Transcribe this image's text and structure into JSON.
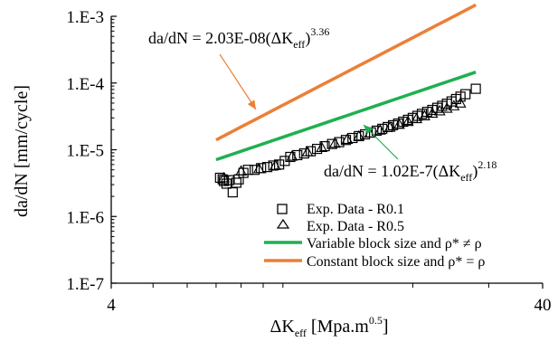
{
  "chart_data": {
    "type": "scatter",
    "xlabel": {
      "main": "ΔK",
      "sub": "eff",
      "unit_open": " [Mpa.m",
      "unit_sup": "0.5",
      "unit_close": "]"
    },
    "ylabel": "da/dN [mm/cycle]",
    "x_scale": "log",
    "y_scale": "log",
    "xlim": [
      4,
      40
    ],
    "ylim": [
      1e-07,
      0.001
    ],
    "x_ticks": [
      {
        "value": 4,
        "label": "4"
      },
      {
        "value": 40,
        "label": "40"
      }
    ],
    "y_ticks": [
      {
        "value": 0.001,
        "label": "1.E-3"
      },
      {
        "value": 0.0001,
        "label": "1.E-4"
      },
      {
        "value": 1e-05,
        "label": "1.E-5"
      },
      {
        "value": 1e-06,
        "label": "1.E-6"
      },
      {
        "value": 1e-07,
        "label": "1.E-7"
      }
    ],
    "grid": false,
    "legend_position": "bottom-right",
    "colors": {
      "green": "#1fb04f",
      "orange": "#ec7f37",
      "axes": "#000000"
    },
    "annotations": {
      "orange_eq": {
        "prefix": "da/dN  = 2.03E-08(ΔK",
        "sub": "eff",
        "close": ")",
        "sup": "3.36"
      },
      "green_eq": {
        "prefix": "da/dN = 1.02E-7(ΔK",
        "sub": "eff",
        "close": ")",
        "sup": "2.18"
      }
    },
    "series": [
      {
        "name": "Exp. Data - R0.1",
        "marker": "square",
        "points": [
          [
            7.15,
            3.8e-06
          ],
          [
            7.25,
            3.6e-06
          ],
          [
            7.3,
            3.4e-06
          ],
          [
            7.4,
            3.1e-06
          ],
          [
            7.5,
            3.5e-06
          ],
          [
            7.65,
            2.3e-06
          ],
          [
            7.8,
            3.2e-06
          ],
          [
            7.9,
            3.6e-06
          ],
          [
            8.1,
            4.5e-06
          ],
          [
            8.3,
            5e-06
          ],
          [
            8.6,
            5e-06
          ],
          [
            8.9,
            5.3e-06
          ],
          [
            9.2,
            5.5e-06
          ],
          [
            9.5,
            5.8e-06
          ],
          [
            9.8,
            6e-06
          ],
          [
            10.1,
            6.8e-06
          ],
          [
            10.4,
            7.8e-06
          ],
          [
            10.8,
            8.3e-06
          ],
          [
            11.2,
            8.8e-06
          ],
          [
            11.6,
            9.5e-06
          ],
          [
            12.0,
            1.03e-05
          ],
          [
            12.5,
            1.13e-05
          ],
          [
            13.0,
            1.22e-05
          ],
          [
            13.5,
            1.3e-05
          ],
          [
            14.0,
            1.4e-05
          ],
          [
            14.5,
            1.5e-05
          ],
          [
            15.0,
            1.6e-05
          ],
          [
            15.5,
            1.7e-05
          ],
          [
            16.0,
            1.82e-05
          ],
          [
            16.5,
            1.93e-05
          ],
          [
            17.0,
            2.06e-05
          ],
          [
            17.5,
            2.19e-05
          ],
          [
            18.0,
            2.33e-05
          ],
          [
            18.5,
            2.47e-05
          ],
          [
            19.0,
            2.63e-05
          ],
          [
            19.5,
            2.81e-05
          ],
          [
            20.0,
            3e-05
          ],
          [
            20.5,
            3.22e-05
          ],
          [
            21.0,
            3.45e-05
          ],
          [
            21.6,
            3.7e-05
          ],
          [
            22.2,
            3.95e-05
          ],
          [
            22.8,
            4.25e-05
          ],
          [
            23.4,
            4.55e-05
          ],
          [
            24.0,
            4.9e-05
          ],
          [
            24.6,
            5.3e-05
          ],
          [
            25.2,
            5.75e-05
          ],
          [
            25.8,
            6.25e-05
          ],
          [
            26.5,
            6.8e-05
          ],
          [
            28.0,
            8.2e-05
          ]
        ]
      },
      {
        "name": "Exp. Data - R0.5",
        "marker": "triangle",
        "points": [
          [
            7.3,
            3.8e-06
          ],
          [
            8.0,
            4.8e-06
          ],
          [
            8.8,
            5.2e-06
          ],
          [
            9.6,
            5.8e-06
          ],
          [
            10.5,
            8e-06
          ],
          [
            11.4,
            9.3e-06
          ],
          [
            12.3,
            1.08e-05
          ],
          [
            13.2,
            1.25e-05
          ],
          [
            14.1,
            1.43e-05
          ],
          [
            15.0,
            1.6e-05
          ],
          [
            15.9,
            1.77e-05
          ],
          [
            16.8,
            1.97e-05
          ],
          [
            17.7,
            2.17e-05
          ],
          [
            18.6,
            2.4e-05
          ],
          [
            19.5,
            2.65e-05
          ],
          [
            20.4,
            2.92e-05
          ],
          [
            21.3,
            3.22e-05
          ],
          [
            22.2,
            3.52e-05
          ],
          [
            23.1,
            3.83e-05
          ],
          [
            24.0,
            4.18e-05
          ],
          [
            24.9,
            4.55e-05
          ],
          [
            25.8,
            5e-05
          ]
        ]
      },
      {
        "name": "Variable block size and ρ* ≠ ρ",
        "type": "line",
        "color": "#1fb04f",
        "coef": 1.02e-07,
        "exponent": 2.18,
        "x_range": [
          7.0,
          28.0
        ]
      },
      {
        "name": "Constant block size and ρ* = ρ",
        "type": "line",
        "color": "#ec7f37",
        "coef": 2.03e-08,
        "exponent": 3.36,
        "x_range": [
          7.0,
          28.0
        ]
      }
    ]
  }
}
